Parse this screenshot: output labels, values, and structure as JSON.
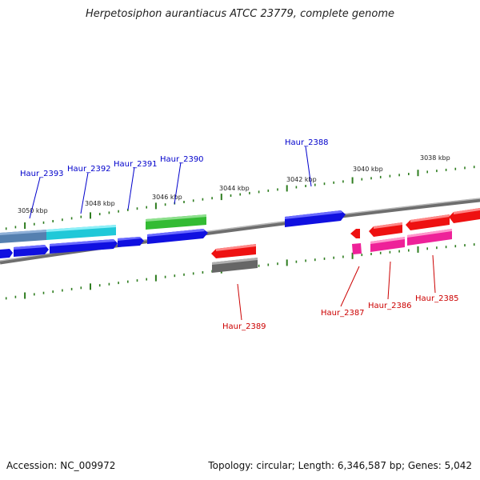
{
  "title": "Herpetosiphon aurantiacus ATCC 23779, complete genome",
  "footer": {
    "accession": "Accession: NC_009972",
    "summary": "Topology: circular; Length: 6,346,587 bp; Genes: 5,042"
  },
  "scale_labels": [
    "3050 kbp",
    "3048 kbp",
    "3046 kbp",
    "3044 kbp",
    "3042 kbp",
    "3040 kbp",
    "3038 kbp"
  ],
  "colors": {
    "forward_label": "#0000cc",
    "reverse_label": "#cc0000",
    "tick": "#2e7d1f",
    "backbone": "#7a7a7a",
    "blue": "#1010e0",
    "cyan": "#20c8d8",
    "green": "#33bb33",
    "red": "#ee1111",
    "pink": "#ee2299",
    "grey": "#666666",
    "steel": "#5580b0"
  },
  "gene_labels": [
    {
      "text": "Haur_2393",
      "strand": "forward"
    },
    {
      "text": "Haur_2392",
      "strand": "forward"
    },
    {
      "text": "Haur_2391",
      "strand": "forward"
    },
    {
      "text": "Haur_2390",
      "strand": "forward"
    },
    {
      "text": "Haur_2388",
      "strand": "forward"
    },
    {
      "text": "Haur_2389",
      "strand": "reverse"
    },
    {
      "text": "Haur_2387",
      "strand": "reverse"
    },
    {
      "text": "Haur_2386",
      "strand": "reverse"
    },
    {
      "text": "Haur_2385",
      "strand": "reverse"
    }
  ]
}
